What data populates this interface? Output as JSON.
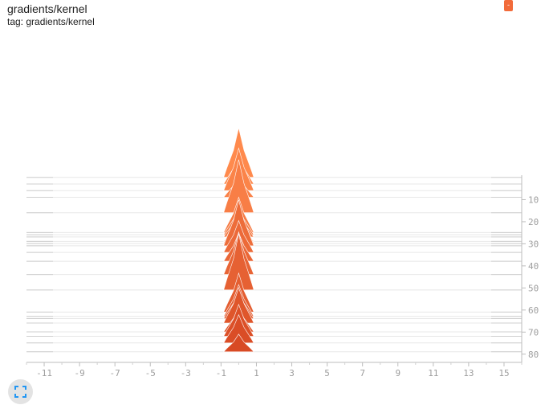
{
  "header": {
    "title": "gradients/kernel",
    "tag": "tag: gradients/kernel",
    "corner_button_label": "-"
  },
  "controls": {
    "expand_icon": "fullscreen-icon"
  },
  "chart_data": {
    "type": "histogram",
    "mode": "offset",
    "xlim": [
      -12,
      16
    ],
    "ylim": [
      0,
      83
    ],
    "x_ticks": [
      -11,
      -9,
      -7,
      -5,
      -3,
      -1,
      1,
      3,
      5,
      7,
      9,
      11,
      13,
      15
    ],
    "x_tick_labels": [
      "-11",
      "-9",
      "-7",
      "-5",
      "-3",
      "-1",
      "1",
      "3",
      "5",
      "7",
      "9",
      "11",
      "13",
      "15"
    ],
    "y_ticks": [
      10,
      20,
      30,
      40,
      50,
      60,
      70,
      80
    ],
    "y_tick_labels": [
      "10",
      "20",
      "30",
      "40",
      "50",
      "60",
      "70",
      "80"
    ],
    "colors": {
      "oldest": "#ff8a4d",
      "newest": "#d84a24"
    },
    "steps": [
      1,
      4,
      7,
      10,
      17,
      26,
      27,
      28,
      30,
      31,
      32,
      35,
      39,
      45,
      52,
      62,
      64,
      65,
      67,
      71,
      73,
      76,
      80
    ],
    "peak_height": [
      14,
      8,
      12,
      6,
      15,
      10,
      8,
      7,
      6,
      11,
      13,
      9,
      8,
      12,
      16,
      11,
      9,
      8,
      10,
      7,
      9,
      8,
      5
    ],
    "half_width": 0.85,
    "grid": true
  }
}
